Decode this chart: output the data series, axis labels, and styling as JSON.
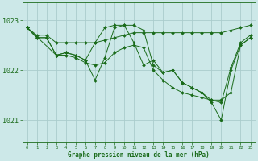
{
  "xlabel": "Graphe pression niveau de la mer (hPa)",
  "bg_color": "#cce8e8",
  "grid_color": "#aacccc",
  "line_color": "#1a6b1a",
  "xlim": [
    -0.5,
    23.5
  ],
  "ylim": [
    1020.55,
    1023.35
  ],
  "yticks": [
    1021,
    1022,
    1023
  ],
  "xticks": [
    0,
    1,
    2,
    3,
    4,
    5,
    6,
    7,
    8,
    9,
    10,
    11,
    12,
    13,
    14,
    15,
    16,
    17,
    18,
    19,
    20,
    21,
    22,
    23
  ],
  "series": [
    {
      "x": [
        0,
        1,
        2,
        3,
        4,
        5,
        6,
        7,
        8,
        9,
        10,
        11,
        12,
        13,
        14,
        15,
        16,
        17,
        18,
        19,
        20,
        21,
        22,
        23
      ],
      "y": [
        1022.85,
        1022.7,
        1022.7,
        1022.55,
        1022.55,
        1022.55,
        1022.55,
        1022.55,
        1022.6,
        1022.65,
        1022.7,
        1022.75,
        1022.75,
        1022.75,
        1022.75,
        1022.75,
        1022.75,
        1022.75,
        1022.75,
        1022.75,
        1022.75,
        1022.8,
        1022.85,
        1022.9
      ]
    },
    {
      "x": [
        0,
        1,
        2,
        3,
        4,
        5,
        6,
        7,
        8,
        9,
        10,
        11,
        12,
        13,
        14,
        15,
        16,
        17,
        18,
        19,
        20,
        21,
        22,
        23
      ],
      "y": [
        1022.85,
        1022.65,
        1022.65,
        1022.3,
        1022.35,
        1022.3,
        1022.2,
        1021.8,
        1022.25,
        1022.85,
        1022.9,
        1022.9,
        1022.8,
        1022.1,
        1021.95,
        1022.0,
        1021.75,
        1021.65,
        1021.55,
        1021.35,
        1021.0,
        1022.0,
        1022.5,
        1022.65
      ]
    },
    {
      "x": [
        0,
        1,
        2,
        3,
        4,
        5,
        6,
        7,
        8,
        9,
        10,
        11,
        12,
        13,
        14,
        15,
        16,
        17,
        18,
        19,
        20,
        21,
        22,
        23
      ],
      "y": [
        1022.85,
        1022.65,
        1022.65,
        1022.3,
        1022.35,
        1022.3,
        1022.2,
        1022.55,
        1022.85,
        1022.9,
        1022.9,
        1022.55,
        1022.1,
        1022.2,
        1021.95,
        1022.0,
        1021.75,
        1021.65,
        1021.55,
        1021.4,
        1021.35,
        1022.05,
        1022.55,
        1022.7
      ]
    },
    {
      "x": [
        0,
        3,
        4,
        5,
        6,
        7,
        8,
        9,
        10,
        11,
        12,
        13,
        14,
        15,
        16,
        17,
        18,
        19,
        20,
        21,
        22,
        23
      ],
      "y": [
        1022.85,
        1022.3,
        1022.3,
        1022.25,
        1022.15,
        1022.1,
        1022.15,
        1022.35,
        1022.45,
        1022.5,
        1022.45,
        1022.0,
        1021.8,
        1021.65,
        1021.55,
        1021.5,
        1021.45,
        1021.4,
        1021.4,
        1021.55,
        1022.5,
        1022.65
      ]
    }
  ]
}
